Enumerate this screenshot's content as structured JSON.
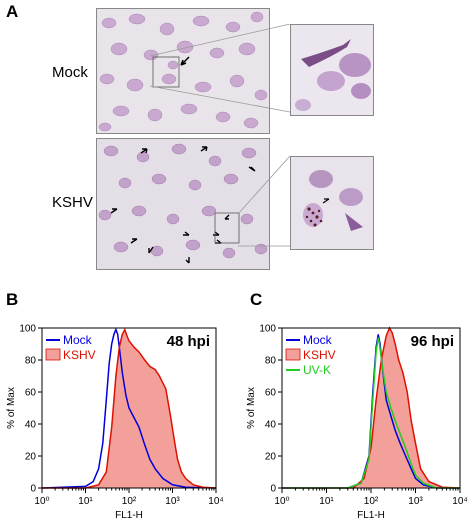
{
  "panel_a": {
    "letter": "A",
    "rows": [
      {
        "label": "Mock"
      },
      {
        "label": "KSHV"
      }
    ]
  },
  "panel_b": {
    "letter": "B"
  },
  "panel_c": {
    "letter": "C"
  },
  "colors": {
    "mock": "#0000dd",
    "kshv_line": "#dd1100",
    "kshv_fill": "#f4a09a",
    "uvk": "#22cc22"
  },
  "chart_data": [
    {
      "type": "area",
      "panel": "B",
      "annotation": "48 hpi",
      "xlabel": "FL1-H",
      "ylabel": "% of Max",
      "xscale": "log",
      "xlim": [
        1,
        10000
      ],
      "ylim": [
        0,
        100
      ],
      "xtick_labels": [
        "10⁰",
        "10¹",
        "10²",
        "10³",
        "10⁴"
      ],
      "ytick_labels": [
        "0",
        "20",
        "40",
        "60",
        "80",
        "100"
      ],
      "legend": [
        "Mock",
        "KSHV"
      ],
      "legend_position": "top-left",
      "series": [
        {
          "name": "Mock",
          "style": "line",
          "points": [
            [
              1,
              0
            ],
            [
              10,
              1
            ],
            [
              15,
              4
            ],
            [
              20,
              12
            ],
            [
              25,
              28
            ],
            [
              30,
              55
            ],
            [
              35,
              78
            ],
            [
              40,
              90
            ],
            [
              45,
              96
            ],
            [
              50,
              99
            ],
            [
              55,
              96
            ],
            [
              60,
              88
            ],
            [
              70,
              72
            ],
            [
              85,
              58
            ],
            [
              100,
              50
            ],
            [
              130,
              44
            ],
            [
              170,
              38
            ],
            [
              230,
              27
            ],
            [
              300,
              18
            ],
            [
              400,
              12
            ],
            [
              600,
              6
            ],
            [
              1000,
              2
            ],
            [
              2000,
              0.5
            ],
            [
              10000,
              0
            ]
          ]
        },
        {
          "name": "KSHV",
          "style": "filled",
          "points": [
            [
              1,
              0
            ],
            [
              10,
              0
            ],
            [
              20,
              2
            ],
            [
              30,
              10
            ],
            [
              40,
              38
            ],
            [
              50,
              70
            ],
            [
              60,
              88
            ],
            [
              70,
              96
            ],
            [
              80,
              99
            ],
            [
              90,
              95
            ],
            [
              100,
              92
            ],
            [
              130,
              88
            ],
            [
              170,
              85
            ],
            [
              230,
              80
            ],
            [
              300,
              76
            ],
            [
              400,
              74
            ],
            [
              500,
              70
            ],
            [
              700,
              62
            ],
            [
              900,
              45
            ],
            [
              1100,
              30
            ],
            [
              1300,
              18
            ],
            [
              1600,
              10
            ],
            [
              2000,
              6
            ],
            [
              3000,
              2
            ],
            [
              5000,
              0.5
            ],
            [
              10000,
              0
            ]
          ]
        }
      ]
    },
    {
      "type": "area",
      "panel": "C",
      "annotation": "96 hpi",
      "xlabel": "FL1-H",
      "ylabel": "% of Max",
      "xscale": "log",
      "xlim": [
        1,
        10000
      ],
      "ylim": [
        0,
        100
      ],
      "xtick_labels": [
        "10⁰",
        "10¹",
        "10²",
        "10³",
        "10⁴"
      ],
      "ytick_labels": [
        "0",
        "20",
        "40",
        "60",
        "80",
        "100"
      ],
      "legend": [
        "Mock",
        "KSHV",
        "UV-K"
      ],
      "legend_position": "top-left",
      "series": [
        {
          "name": "Mock",
          "style": "line",
          "points": [
            [
              1,
              0
            ],
            [
              30,
              0
            ],
            [
              60,
              3
            ],
            [
              90,
              20
            ],
            [
              110,
              60
            ],
            [
              130,
              88
            ],
            [
              145,
              96
            ],
            [
              160,
              90
            ],
            [
              180,
              75
            ],
            [
              220,
              55
            ],
            [
              280,
              45
            ],
            [
              350,
              36
            ],
            [
              450,
              28
            ],
            [
              600,
              20
            ],
            [
              800,
              12
            ],
            [
              1000,
              6
            ],
            [
              1500,
              2
            ],
            [
              3000,
              0
            ],
            [
              10000,
              0
            ]
          ]
        },
        {
          "name": "KSHV",
          "style": "filled",
          "points": [
            [
              1,
              0
            ],
            [
              40,
              0
            ],
            [
              70,
              6
            ],
            [
              100,
              25
            ],
            [
              130,
              55
            ],
            [
              170,
              80
            ],
            [
              220,
              95
            ],
            [
              260,
              100
            ],
            [
              300,
              97
            ],
            [
              350,
              90
            ],
            [
              420,
              80
            ],
            [
              520,
              72
            ],
            [
              650,
              60
            ],
            [
              800,
              42
            ],
            [
              1000,
              28
            ],
            [
              1300,
              12
            ],
            [
              2000,
              4
            ],
            [
              4000,
              0.5
            ],
            [
              10000,
              0
            ]
          ]
        },
        {
          "name": "UV-K",
          "style": "line",
          "points": [
            [
              1,
              0
            ],
            [
              30,
              0
            ],
            [
              60,
              3
            ],
            [
              90,
              18
            ],
            [
              110,
              55
            ],
            [
              130,
              85
            ],
            [
              145,
              94
            ],
            [
              155,
              90
            ],
            [
              175,
              78
            ],
            [
              220,
              60
            ],
            [
              280,
              50
            ],
            [
              350,
              42
            ],
            [
              450,
              34
            ],
            [
              600,
              25
            ],
            [
              800,
              15
            ],
            [
              1000,
              8
            ],
            [
              1500,
              3
            ],
            [
              3000,
              0
            ],
            [
              10000,
              0
            ]
          ]
        }
      ]
    }
  ]
}
